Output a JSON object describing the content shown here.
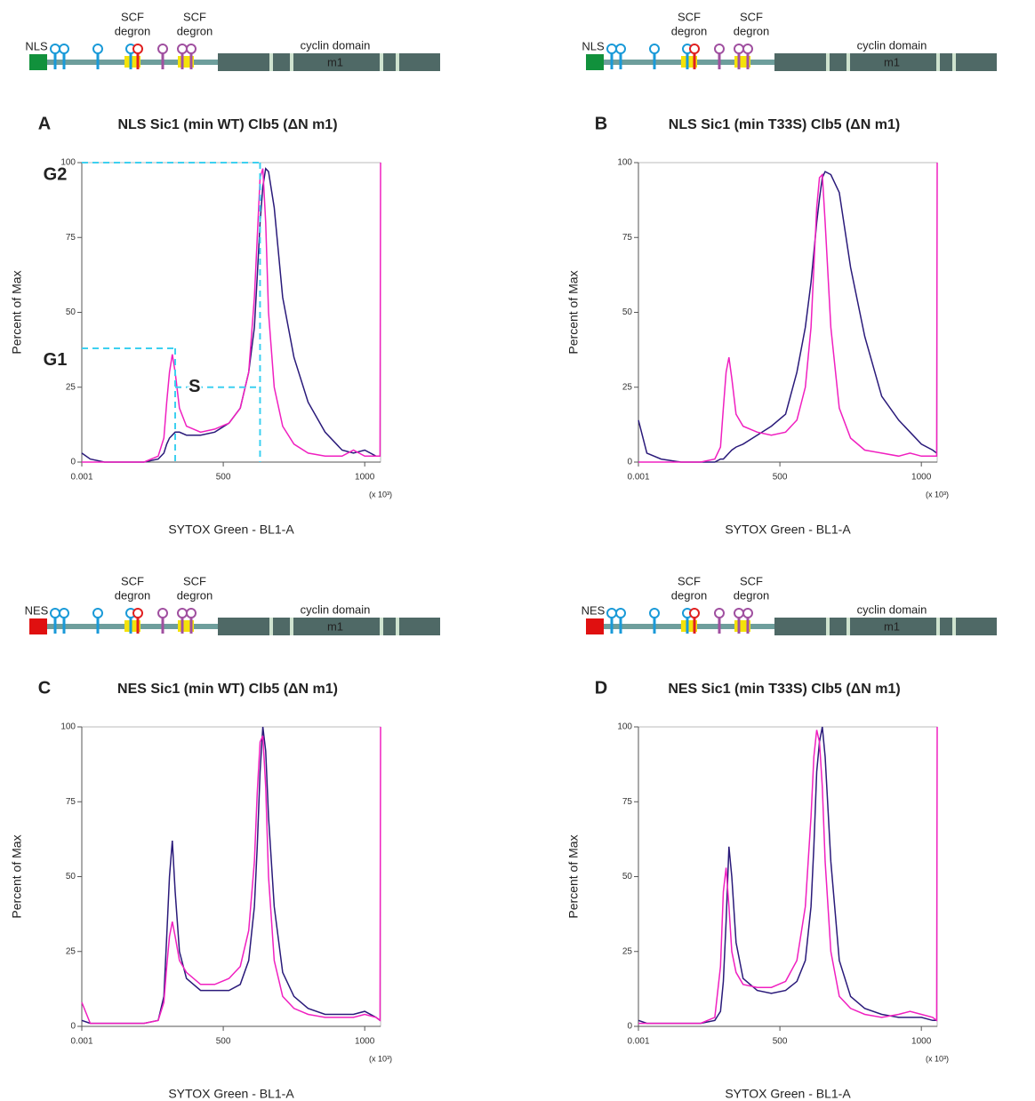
{
  "chart_data": [
    {
      "type": "line",
      "panel": "A",
      "title": "NLS Sic1 (min WT) Clb5 (ΔN m1)",
      "construct": {
        "signal": "NLS",
        "signal_color": "#11913c",
        "degron_labels": [
          [
            "SCF",
            "degron"
          ],
          [
            "SCF",
            "degron"
          ]
        ],
        "domain": "cyclin domain",
        "motif": "m1"
      },
      "xlabel": "SYTOX Green - BL1-A",
      "ylabel": "Percent of Max",
      "x_unit": "(x 10³)",
      "xlim": [
        0,
        1056
      ],
      "ylim": [
        0,
        100
      ],
      "xticks": [
        0.001,
        500,
        1000
      ],
      "yticks": [
        0,
        25,
        50,
        75,
        100
      ],
      "x": [
        0,
        30,
        80,
        150,
        220,
        270,
        290,
        300,
        310,
        320,
        330,
        345,
        370,
        420,
        470,
        520,
        560,
        590,
        610,
        620,
        630,
        640,
        650,
        660,
        680,
        710,
        750,
        800,
        860,
        920,
        960,
        1000,
        1040,
        1054,
        1056
      ],
      "series": [
        {
          "color": "#2a1a7a",
          "values": [
            3,
            1,
            0,
            0,
            0,
            1,
            3,
            6,
            8,
            9,
            10,
            10,
            9,
            9,
            10,
            13,
            18,
            30,
            45,
            62,
            80,
            92,
            98,
            97,
            85,
            55,
            35,
            20,
            10,
            4,
            3,
            4,
            2,
            2,
            2
          ]
        },
        {
          "color": "#f020c0",
          "values": [
            0,
            0,
            0,
            0,
            0,
            2,
            8,
            20,
            30,
            36,
            30,
            18,
            12,
            10,
            11,
            13,
            18,
            30,
            55,
            75,
            95,
            98,
            80,
            50,
            25,
            12,
            6,
            3,
            2,
            2,
            4,
            2,
            2,
            2,
            100
          ]
        }
      ],
      "annotations": [
        {
          "label": "G2",
          "x": 630,
          "y": 100
        },
        {
          "label": "G1",
          "x": 330,
          "y": 38
        },
        {
          "label": "S",
          "x": 330,
          "x2": 630,
          "y": 25
        }
      ],
      "annotation_color": "#3dd0f0"
    },
    {
      "type": "line",
      "panel": "B",
      "title": "NLS Sic1 (min T33S) Clb5 (ΔN m1)",
      "construct": {
        "signal": "NLS",
        "signal_color": "#11913c",
        "degron_labels": [
          [
            "SCF",
            "degron"
          ],
          [
            "SCF",
            "degron"
          ]
        ],
        "domain": "cyclin domain",
        "motif": "m1"
      },
      "xlabel": "SYTOX Green - BL1-A",
      "ylabel": "Percent of Max",
      "x_unit": "(x 10³)",
      "xlim": [
        0,
        1056
      ],
      "ylim": [
        0,
        100
      ],
      "xticks": [
        0.001,
        500,
        1000
      ],
      "yticks": [
        0,
        25,
        50,
        75,
        100
      ],
      "x": [
        0,
        30,
        80,
        150,
        220,
        270,
        290,
        300,
        310,
        320,
        330,
        345,
        370,
        420,
        470,
        520,
        560,
        590,
        610,
        620,
        630,
        640,
        650,
        660,
        680,
        710,
        750,
        800,
        860,
        920,
        960,
        1000,
        1040,
        1054,
        1056
      ],
      "series": [
        {
          "color": "#2a1a7a",
          "values": [
            14,
            3,
            1,
            0,
            0,
            0,
            1,
            1,
            2,
            3,
            4,
            5,
            6,
            9,
            12,
            16,
            30,
            45,
            60,
            70,
            80,
            88,
            95,
            97,
            96,
            90,
            65,
            42,
            22,
            14,
            10,
            6,
            4,
            3,
            3
          ]
        },
        {
          "color": "#f020c0",
          "values": [
            0,
            0,
            0,
            0,
            0,
            1,
            5,
            18,
            30,
            35,
            28,
            16,
            12,
            10,
            9,
            10,
            14,
            25,
            45,
            65,
            85,
            95,
            96,
            80,
            45,
            18,
            8,
            4,
            3,
            2,
            3,
            2,
            2,
            2,
            100
          ]
        }
      ]
    },
    {
      "type": "line",
      "panel": "C",
      "title": "NES Sic1 (min WT) Clb5 (ΔN m1)",
      "construct": {
        "signal": "NES",
        "signal_color": "#e01010",
        "degron_labels": [
          [
            "SCF",
            "degron"
          ],
          [
            "SCF",
            "degron"
          ]
        ],
        "domain": "cyclin domain",
        "motif": "m1"
      },
      "xlabel": "SYTOX Green - BL1-A",
      "ylabel": "Percent of Max",
      "x_unit": "(x 10³)",
      "xlim": [
        0,
        1056
      ],
      "ylim": [
        0,
        100
      ],
      "xticks": [
        0.001,
        500,
        1000
      ],
      "yticks": [
        0,
        25,
        50,
        75,
        100
      ],
      "x": [
        0,
        30,
        80,
        150,
        220,
        270,
        290,
        300,
        310,
        320,
        330,
        345,
        370,
        420,
        470,
        520,
        560,
        590,
        610,
        620,
        630,
        640,
        650,
        660,
        680,
        710,
        750,
        800,
        860,
        920,
        960,
        1000,
        1040,
        1054,
        1056
      ],
      "series": [
        {
          "color": "#2a1a7a",
          "values": [
            2,
            1,
            1,
            1,
            1,
            2,
            10,
            30,
            50,
            62,
            45,
            25,
            16,
            12,
            12,
            12,
            14,
            22,
            40,
            60,
            85,
            100,
            92,
            70,
            40,
            18,
            10,
            6,
            4,
            4,
            4,
            5,
            3,
            2,
            2
          ]
        },
        {
          "color": "#f020c0",
          "values": [
            8,
            1,
            1,
            1,
            1,
            2,
            8,
            20,
            30,
            35,
            30,
            22,
            18,
            14,
            14,
            16,
            20,
            32,
            55,
            78,
            95,
            97,
            80,
            50,
            22,
            10,
            6,
            4,
            3,
            3,
            3,
            4,
            3,
            2,
            100
          ]
        }
      ]
    },
    {
      "type": "line",
      "panel": "D",
      "title": "NES Sic1 (min T33S) Clb5 (ΔN m1)",
      "construct": {
        "signal": "NES",
        "signal_color": "#e01010",
        "degron_labels": [
          [
            "SCF",
            "degron"
          ],
          [
            "SCF",
            "degron"
          ]
        ],
        "domain": "cyclin domain",
        "motif": "m1"
      },
      "xlabel": "SYTOX Green - BL1-A",
      "ylabel": "Percent of Max",
      "x_unit": "(x 10³)",
      "xlim": [
        0,
        1056
      ],
      "ylim": [
        0,
        100
      ],
      "xticks": [
        0.001,
        500,
        1000
      ],
      "yticks": [
        0,
        25,
        50,
        75,
        100
      ],
      "x": [
        0,
        30,
        80,
        150,
        220,
        270,
        290,
        300,
        310,
        320,
        330,
        345,
        370,
        420,
        470,
        520,
        560,
        590,
        610,
        620,
        630,
        640,
        650,
        660,
        680,
        710,
        750,
        800,
        860,
        920,
        960,
        1000,
        1040,
        1054,
        1056
      ],
      "series": [
        {
          "color": "#2a1a7a",
          "values": [
            2,
            1,
            1,
            1,
            1,
            2,
            5,
            15,
            35,
            60,
            50,
            28,
            16,
            12,
            11,
            12,
            15,
            22,
            40,
            60,
            85,
            95,
            100,
            90,
            55,
            22,
            10,
            6,
            4,
            3,
            3,
            3,
            2,
            2,
            2
          ]
        },
        {
          "color": "#f020c0",
          "values": [
            1,
            1,
            1,
            1,
            1,
            3,
            20,
            45,
            53,
            40,
            25,
            18,
            14,
            13,
            13,
            15,
            22,
            40,
            70,
            90,
            99,
            95,
            80,
            55,
            25,
            10,
            6,
            4,
            3,
            4,
            5,
            4,
            3,
            2,
            100
          ]
        }
      ]
    }
  ]
}
